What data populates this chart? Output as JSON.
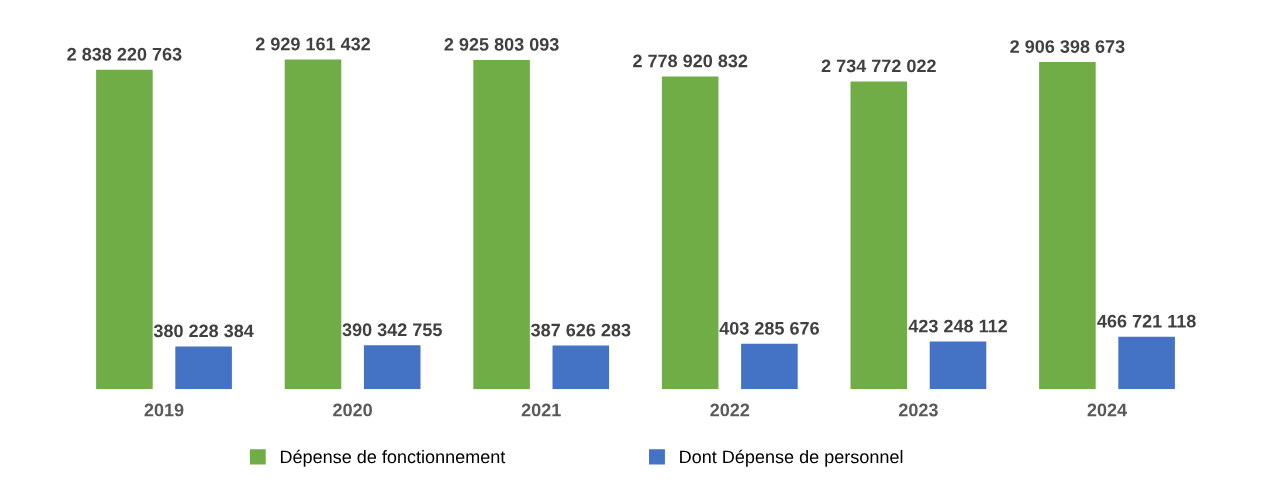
{
  "chart_data": {
    "type": "bar",
    "categories": [
      "2019",
      "2020",
      "2021",
      "2022",
      "2023",
      "2024"
    ],
    "series": [
      {
        "name": "Dépense de fonctionnement",
        "color": "#70ad47",
        "values": [
          2838220763,
          2929161432,
          2925803093,
          2778920832,
          2734772022,
          2906398673
        ],
        "value_labels": [
          "2 838 220 763",
          "2 929 161 432",
          "2 925 803 093",
          "2 778 920 832",
          "2 734 772 022",
          "2 906 398 673"
        ]
      },
      {
        "name": "Dont Dépense de personnel",
        "color": "#4472c4",
        "values": [
          380228384,
          390342755,
          387626283,
          403285676,
          423248112,
          466721118
        ],
        "value_labels": [
          "380 228 384",
          "390 342 755",
          "387 626 283",
          "403 285 676",
          "423 248 112",
          "466 721 118"
        ]
      }
    ],
    "legend": "bottom",
    "grid": false
  }
}
